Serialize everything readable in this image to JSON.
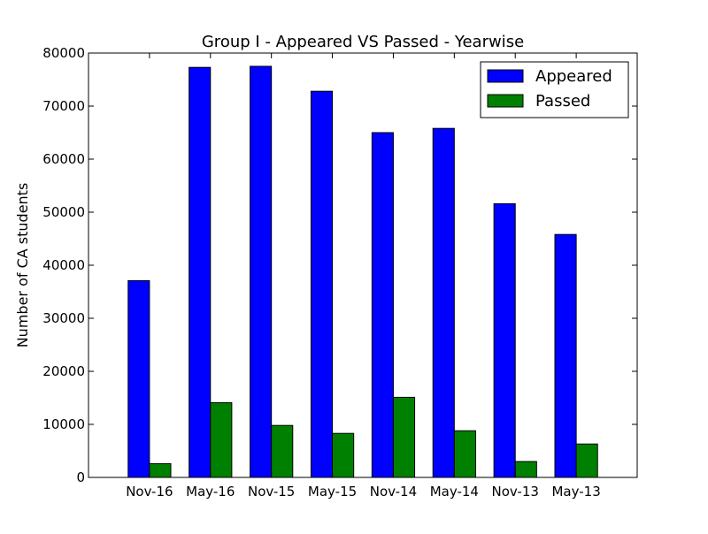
{
  "chart_data": {
    "type": "bar",
    "title": "Group I - Appeared VS Passed - Yearwise",
    "xlabel": "",
    "ylabel": "Number of CA students",
    "categories": [
      "Nov-16",
      "May-16",
      "Nov-15",
      "May-15",
      "Nov-14",
      "May-14",
      "Nov-13",
      "May-13"
    ],
    "series": [
      {
        "name": "Appeared",
        "color": "#0000ff",
        "values": [
          37100,
          77300,
          77500,
          72800,
          65000,
          65800,
          51600,
          45800
        ]
      },
      {
        "name": "Passed",
        "color": "#008000",
        "values": [
          2600,
          14100,
          9800,
          8300,
          15100,
          8800,
          3000,
          6300
        ]
      }
    ],
    "ylim": [
      0,
      80000
    ],
    "yticks": [
      0,
      10000,
      20000,
      30000,
      40000,
      50000,
      60000,
      70000,
      80000
    ],
    "grid": false,
    "legend_position": "top-right"
  }
}
